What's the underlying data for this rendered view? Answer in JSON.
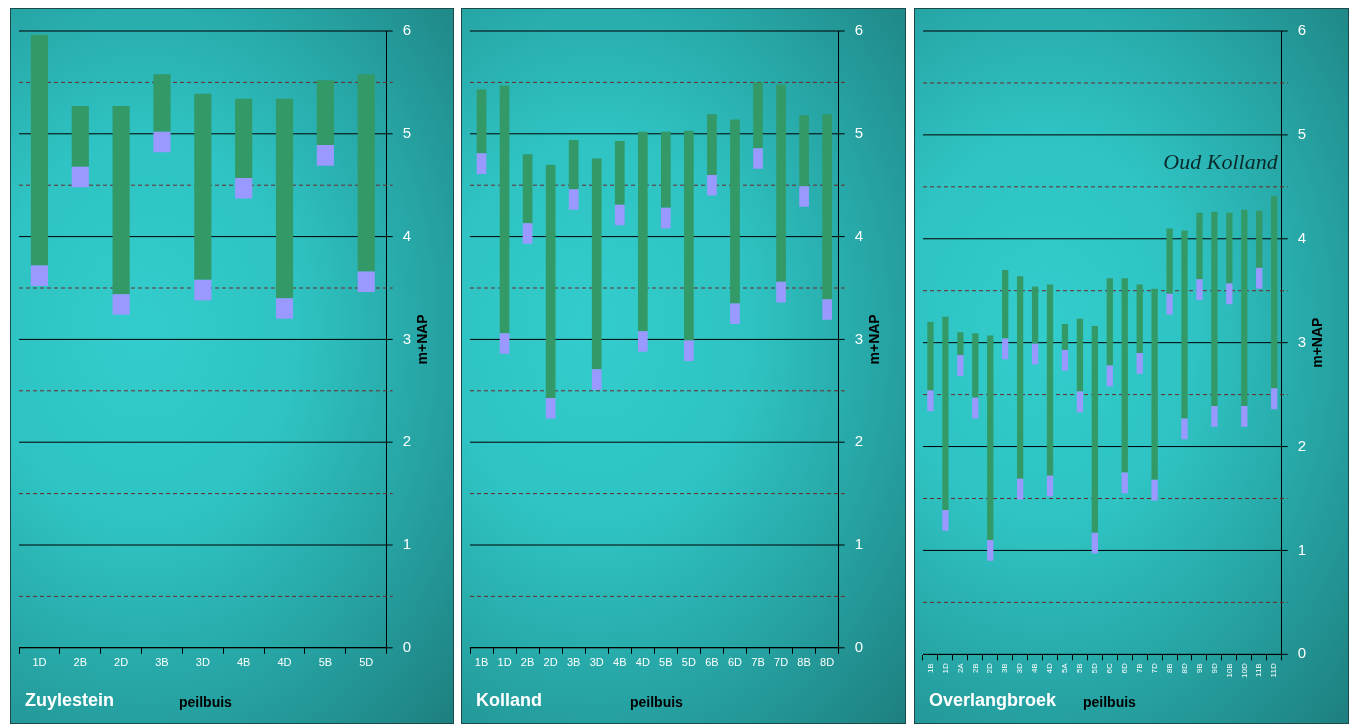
{
  "chart_data": [
    {
      "type": "bar",
      "title": "Zuylestein",
      "xlabel": "peilbuis",
      "ylabel": "m+NAP",
      "grid": true,
      "categories": [
        "1D",
        "2B",
        "2D",
        "3B",
        "3D",
        "4B",
        "4D",
        "5B",
        "5D"
      ],
      "series": [
        {
          "color": "#9999ff",
          "base": [
            3.52,
            4.48,
            3.24,
            4.82,
            3.38,
            4.37,
            3.2,
            4.69,
            3.46
          ],
          "values": [
            0.2,
            0.2,
            0.2,
            0.2,
            0.2,
            0.2,
            0.2,
            0.2,
            0.2
          ]
        },
        {
          "color": "#339966",
          "base": [
            3.72,
            4.68,
            3.44,
            5.02,
            3.58,
            4.57,
            3.4,
            4.89,
            3.66
          ],
          "values": [
            2.24,
            0.59,
            1.83,
            0.56,
            1.81,
            0.77,
            1.94,
            0.63,
            1.92
          ]
        }
      ],
      "ylim": [
        0,
        6
      ],
      "yticks": [
        0,
        {
          "value": 0.5,
          "label": null
        },
        1,
        {
          "value": 1.5,
          "label": null
        },
        2,
        {
          "value": 2.5,
          "label": null
        },
        3,
        {
          "value": 3.5,
          "label": null
        },
        4,
        {
          "value": 4.5,
          "label": null
        },
        5,
        {
          "value": 5.5,
          "label": null
        },
        6
      ]
    },
    {
      "type": "bar",
      "title": "Kolland",
      "xlabel": "peilbuis",
      "ylabel": "m+NAP",
      "grid": true,
      "categories": [
        "1B",
        "1D",
        "2B",
        "2D",
        "3B",
        "3D",
        "4B",
        "4D",
        "5B",
        "5D",
        "6B",
        "6D",
        "7B",
        "7D",
        "8B",
        "8D"
      ],
      "series": [
        {
          "color": "#9999ff",
          "base": [
            4.61,
            2.86,
            3.93,
            2.23,
            4.26,
            2.51,
            4.11,
            2.88,
            4.08,
            2.79,
            4.4,
            3.15,
            4.66,
            3.36,
            4.29,
            3.19
          ],
          "values": [
            0.2,
            0.2,
            0.2,
            0.2,
            0.2,
            0.2,
            0.2,
            0.2,
            0.2,
            0.2,
            0.2,
            0.2,
            0.2,
            0.2,
            0.2,
            0.2
          ]
        },
        {
          "color": "#339966",
          "base": [
            4.81,
            3.06,
            4.13,
            2.43,
            4.46,
            2.71,
            4.31,
            3.08,
            4.28,
            2.99,
            4.6,
            3.35,
            4.86,
            3.56,
            4.49,
            3.39
          ],
          "values": [
            0.62,
            2.41,
            0.67,
            2.27,
            0.48,
            2.05,
            0.62,
            1.94,
            0.74,
            2.04,
            0.59,
            1.79,
            0.64,
            1.92,
            0.69,
            1.8
          ]
        }
      ],
      "ylim": [
        0,
        6
      ],
      "yticks": [
        0,
        {
          "value": 0.5,
          "label": null
        },
        1,
        {
          "value": 1.5,
          "label": null
        },
        2,
        {
          "value": 2.5,
          "label": null
        },
        3,
        {
          "value": 3.5,
          "label": null
        },
        4,
        {
          "value": 4.5,
          "label": null
        },
        5,
        {
          "value": 5.5,
          "label": null
        },
        6
      ]
    },
    {
      "type": "bar",
      "title": "Overlangbroek",
      "xlabel": "peilbuis",
      "ylabel": "m+NAP",
      "grid": true,
      "annotations": [
        "Oud Kolland"
      ],
      "categories": [
        "1B",
        "1D",
        "2A",
        "2B",
        "2D",
        "3B",
        "3D",
        "4B",
        "4D",
        "5A",
        "5B",
        "5D",
        "6C",
        "6D",
        "7B",
        "7D",
        "8B",
        "8D",
        "9B",
        "9D",
        "10B",
        "10D",
        "11B",
        "11D"
      ],
      "series": [
        {
          "color": "#9999ff",
          "base": [
            2.34,
            1.19,
            2.68,
            2.27,
            0.9,
            2.84,
            1.49,
            2.79,
            1.52,
            2.73,
            2.33,
            0.97,
            2.58,
            1.55,
            2.7,
            1.48,
            3.27,
            2.07,
            3.41,
            2.19,
            3.37,
            2.19,
            3.52,
            2.36
          ],
          "values": [
            0.2,
            0.2,
            0.2,
            0.2,
            0.2,
            0.2,
            0.2,
            0.2,
            0.2,
            0.2,
            0.2,
            0.2,
            0.2,
            0.2,
            0.2,
            0.2,
            0.2,
            0.2,
            0.2,
            0.2,
            0.2,
            0.2,
            0.2,
            0.2
          ]
        },
        {
          "color": "#339966",
          "base": [
            2.54,
            1.39,
            2.88,
            2.47,
            1.1,
            3.04,
            1.69,
            2.99,
            1.72,
            2.93,
            2.53,
            1.17,
            2.78,
            1.75,
            2.9,
            1.68,
            3.47,
            2.27,
            3.61,
            2.39,
            3.57,
            2.39,
            3.72,
            2.56
          ],
          "values": [
            0.66,
            1.86,
            0.22,
            0.62,
            1.97,
            0.66,
            1.95,
            0.55,
            1.84,
            0.25,
            0.7,
            1.99,
            0.84,
            1.87,
            0.66,
            1.84,
            0.63,
            1.81,
            0.64,
            1.87,
            0.68,
            1.89,
            0.55,
            1.85
          ]
        }
      ],
      "ylim": [
        0,
        6
      ],
      "yticks": [
        0,
        {
          "value": 0.5,
          "label": null
        },
        1,
        {
          "value": 1.5,
          "label": null
        },
        2,
        {
          "value": 2.5,
          "label": null
        },
        3,
        {
          "value": 3.5,
          "label": null
        },
        4,
        {
          "value": 4.5,
          "label": null
        },
        5,
        {
          "value": 5.5,
          "label": null
        },
        6
      ]
    }
  ]
}
